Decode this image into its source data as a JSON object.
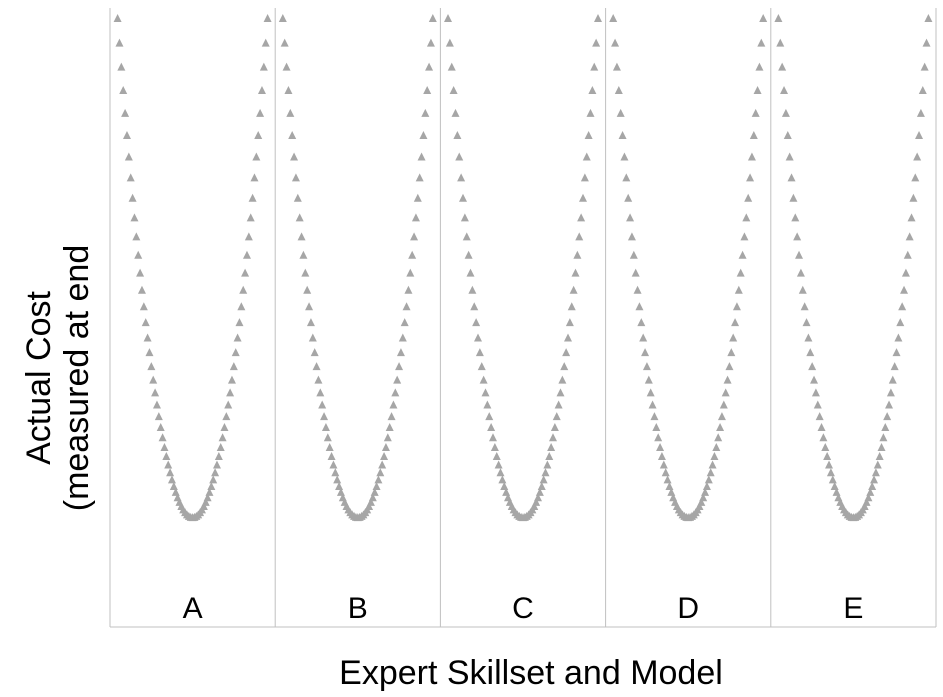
{
  "chart_data": {
    "type": "scatter",
    "title": "",
    "xlabel": "Expert Skillset and Model",
    "ylabel_lines": [
      "Actual Cost",
      "(measured at end"
    ],
    "marker": "triangle",
    "marker_color": "#a6a6a6",
    "panel_border_color": "#c0c0c0",
    "grid": false,
    "legend": "none",
    "panels": [
      {
        "label": "A"
      },
      {
        "label": "B"
      },
      {
        "label": "C"
      },
      {
        "label": "D"
      },
      {
        "label": "E"
      }
    ],
    "curve": {
      "shape": "parabola",
      "x_range": [
        -1,
        1
      ],
      "y_min": 0.0,
      "y_max": 1.0,
      "points_per_panel": 81
    },
    "ylim": [
      -0.22,
      1.02
    ]
  }
}
